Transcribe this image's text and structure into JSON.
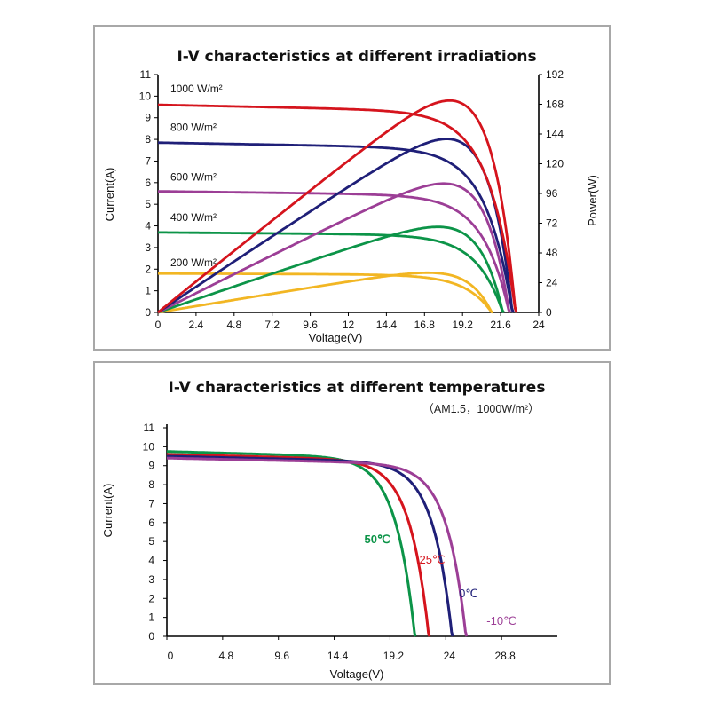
{
  "chart_data": [
    {
      "type": "line",
      "title": "I-V characteristics at different irradiations",
      "xlabel": "Voltage(V)",
      "ylabel": "Current(A)",
      "y2label": "Power(W)",
      "xlim": [
        0,
        24
      ],
      "ylim": [
        0,
        11
      ],
      "y2lim": [
        0,
        192
      ],
      "xticks": [
        "0",
        "2.4",
        "4.8",
        "7.2",
        "9.6",
        "12",
        "14.4",
        "16.8",
        "19.2",
        "21.6",
        "24"
      ],
      "yticks": [
        "0",
        "1",
        "2",
        "3",
        "4",
        "5",
        "6",
        "7",
        "8",
        "9",
        "10",
        "11"
      ],
      "y2ticks": [
        "0",
        "24",
        "48",
        "72",
        "96",
        "120",
        "144",
        "168",
        "192"
      ],
      "series": [
        {
          "name": "1000 W/m²",
          "color": "#d5141d",
          "isc": 9.6,
          "voc": 22.6,
          "pmax": 171,
          "vmp": 18.5
        },
        {
          "name": "800 W/m²",
          "color": "#1f1f78",
          "isc": 7.85,
          "voc": 22.4,
          "pmax": 140,
          "vmp": 18.4
        },
        {
          "name": "600 W/m²",
          "color": "#9c3e96",
          "isc": 5.6,
          "voc": 22.2,
          "pmax": 104,
          "vmp": 18.3
        },
        {
          "name": "400 W/m²",
          "color": "#0c9448",
          "isc": 3.7,
          "voc": 21.8,
          "pmax": 69,
          "vmp": 18.1
        },
        {
          "name": "200 W/m²",
          "color": "#f2b623",
          "isc": 1.8,
          "voc": 21.1,
          "pmax": 32,
          "vmp": 17.8
        }
      ]
    },
    {
      "type": "line",
      "title": "I-V characteristics at different temperatures",
      "subtitle": "（AM1.5，1000W/m²）",
      "xlabel": "Voltage(V)",
      "ylabel": "Current(A)",
      "xlim": [
        0,
        33.6
      ],
      "ylim": [
        0,
        11
      ],
      "xticks": [
        "0",
        "4.8",
        "9.6",
        "14.4",
        "19.2",
        "24",
        "28.8"
      ],
      "yticks": [
        "0",
        "1",
        "2",
        "3",
        "4",
        "5",
        "6",
        "7",
        "8",
        "9",
        "10",
        "11"
      ],
      "series": [
        {
          "name": "50℃",
          "color": "#0c9448",
          "isc": 9.75,
          "voc": 21.4
        },
        {
          "name": "25℃",
          "color": "#d5141d",
          "isc": 9.6,
          "voc": 22.6
        },
        {
          "name": "0℃",
          "color": "#1f1f78",
          "isc": 9.5,
          "voc": 24.6
        },
        {
          "name": "-10℃",
          "color": "#9c3e96",
          "isc": 9.4,
          "voc": 25.8
        }
      ]
    }
  ]
}
